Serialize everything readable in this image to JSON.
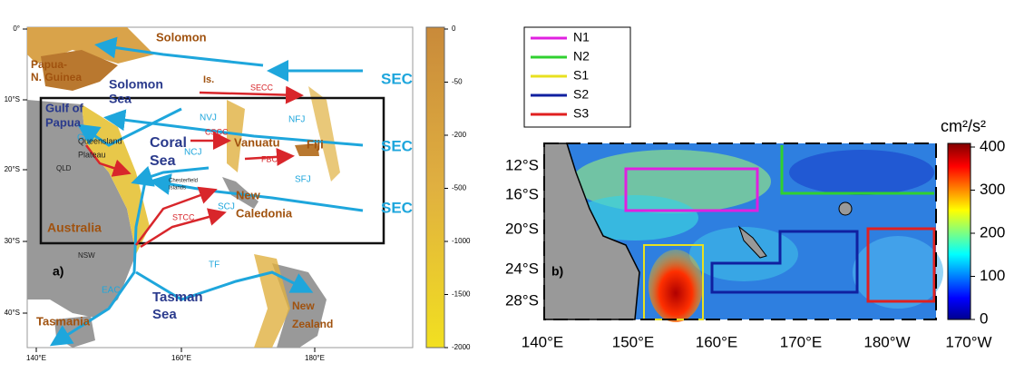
{
  "panel_a": {
    "labels": [
      [
        "Solomon"
      ],
      [
        "Papua-",
        "N. Guinea"
      ],
      [
        "Solomon",
        "Sea"
      ],
      [
        "Is."
      ],
      [
        "SECC"
      ],
      [
        "Gulf of",
        "Papua"
      ],
      [
        "GPC"
      ],
      [
        "NVJ"
      ],
      [
        "NFJ"
      ],
      [
        "Queensland",
        "Plateau"
      ],
      [
        "Coral",
        "Sea"
      ],
      [
        "CSCC"
      ],
      [
        "Vanuatu"
      ],
      [
        "Fiji"
      ],
      [
        "NCJ"
      ],
      [
        "FBCC"
      ],
      [
        "QLD"
      ],
      [
        "Chesterfield",
        "Islands"
      ],
      [
        "SFJ"
      ],
      [
        "SEC"
      ],
      [
        "SEC"
      ],
      [
        "SEC"
      ],
      [
        "New",
        "Caledonia"
      ],
      [
        "SCJ"
      ],
      [
        "STCC"
      ],
      [
        "Australia"
      ],
      [
        "NSW"
      ],
      [
        "TF"
      ],
      [
        "EAC"
      ],
      [
        "Tasman",
        "Sea"
      ],
      [
        "New",
        "Zealand"
      ],
      [
        "Tasmania"
      ],
      [
        "a)"
      ]
    ],
    "lat_labels": [
      "0°",
      "10°S",
      "20°S",
      "30°S",
      "40°S"
    ],
    "lon_labels": [
      "140°E",
      "160°E",
      "180°E"
    ],
    "colorbar": {
      "ticks": [
        0,
        -50,
        -200,
        -500,
        -1000,
        -1500,
        -2000
      ]
    }
  },
  "panel_b": {
    "legend": [
      "N1",
      "N2",
      "S1",
      "S2",
      "S3"
    ],
    "lat_labels": [
      "12°S",
      "16°S",
      "20°S",
      "24°S",
      "28°S"
    ],
    "lon_labels": [
      "140°E",
      "150°E",
      "160°E",
      "170°E",
      "180°W",
      "170°W"
    ],
    "panel_label": "b)",
    "colorbar": {
      "units": "cm²/s²",
      "ticks": [
        0,
        100,
        200,
        300,
        400
      ]
    }
  }
}
